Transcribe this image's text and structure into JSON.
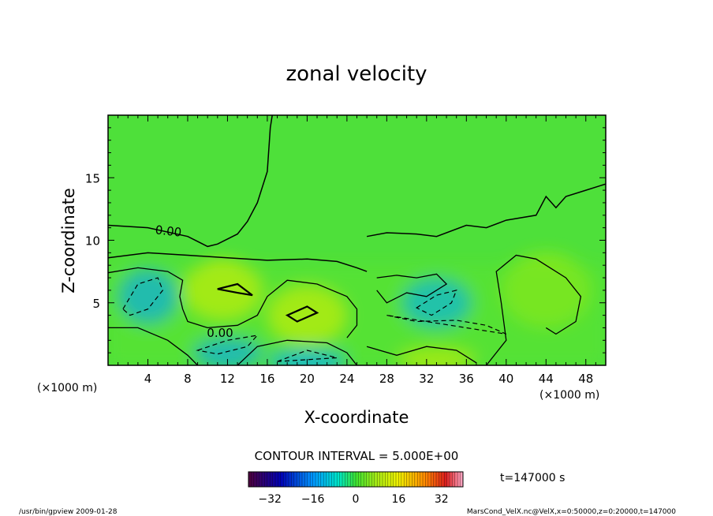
{
  "chart_data": {
    "type": "heatmap",
    "title": "zonal velocity",
    "xlabel": "X-coordinate",
    "ylabel": "Z-coordinate",
    "x_unit": "(×1000 m)",
    "xlim": [
      0,
      50
    ],
    "ylim": [
      0,
      20
    ],
    "x_ticks": [
      "4",
      "8",
      "12",
      "16",
      "20",
      "24",
      "28",
      "32",
      "36",
      "40",
      "44",
      "48"
    ],
    "y_ticks": [
      "5",
      "10",
      "15"
    ],
    "contour_interval_label": "CONTOUR INTERVAL = 5.000E+00",
    "contour_labels": [
      "0.00",
      "0.00"
    ],
    "time_label": "t=147000 s",
    "colorbar": {
      "range": [
        -40,
        40
      ],
      "ticks": [
        "−32",
        "−16",
        "0",
        "16",
        "32"
      ]
    },
    "footer_left": "/usr/bin/gpview   2009-01-28",
    "footer_right": "MarsCond_VelX.nc@VelX,x=0:50000,z=0:20000,t=147000",
    "features": [
      {
        "name": "negative cell",
        "x": 4,
        "z": 5.5,
        "value": -14
      },
      {
        "name": "positive cell",
        "x": 11.5,
        "z": 6,
        "value": 11
      },
      {
        "name": "positive cell",
        "x": 20,
        "z": 4,
        "value": 11
      },
      {
        "name": "negative cell",
        "x": 33,
        "z": 5,
        "value": -13
      },
      {
        "name": "positive cell",
        "x": 44,
        "z": 6,
        "value": 5
      },
      {
        "name": "negative cell near surface",
        "x": 12,
        "z": 1,
        "value": -14
      },
      {
        "name": "negative cell near surface",
        "x": 20,
        "z": 0.4,
        "value": -13
      },
      {
        "name": "positive cell near surface",
        "x": 33,
        "z": 0.5,
        "value": 9
      }
    ]
  }
}
